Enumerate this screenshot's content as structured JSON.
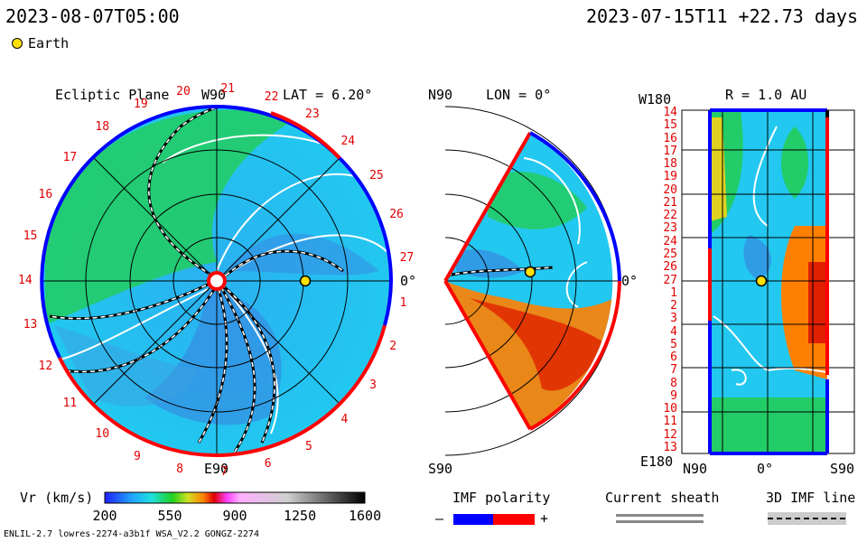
{
  "header": {
    "time_current": "2023-08-07T05:00",
    "time_run": "2023-07-15T11 +22.73 days",
    "legend_earth": "Earth"
  },
  "panels": {
    "ecliptic": {
      "title": "Ecliptic Plane",
      "w90": "W90",
      "lat": "LAT = 6.20°",
      "e90": "E90",
      "zero": "0°"
    },
    "meridional": {
      "n90": "N90",
      "lon": "LON = 0°",
      "s90": "S90",
      "zero": "0°"
    },
    "radial": {
      "w180": "W180",
      "r": "R = 1.0 AU",
      "e180": "E180",
      "n90": "N90",
      "zero": "0°",
      "s90": "S90"
    }
  },
  "carrington_labels": [
    "14",
    "15",
    "16",
    "17",
    "18",
    "19",
    "20",
    "21",
    "22",
    "23",
    "24",
    "25",
    "26",
    "27",
    "1",
    "2",
    "3",
    "4",
    "5",
    "6",
    "7",
    "8",
    "9",
    "10",
    "11",
    "12",
    "13"
  ],
  "radial_ticks": [
    "14",
    "15",
    "16",
    "17",
    "18",
    "19",
    "20",
    "21",
    "22",
    "23",
    "24",
    "25",
    "26",
    "27",
    "1",
    "2",
    "3",
    "4",
    "5",
    "6",
    "7",
    "8",
    "9",
    "10",
    "11",
    "12",
    "13"
  ],
  "colorbar": {
    "title": "Vr (km/s)",
    "ticks": [
      "200",
      "550",
      "900",
      "1250",
      "1600"
    ]
  },
  "imf_legend": {
    "title": "IMF polarity",
    "minus": "–",
    "plus": "+"
  },
  "sheath_legend": {
    "title": "Current sheath"
  },
  "imf3d_legend": {
    "title": "3D IMF line"
  },
  "footer": {
    "model": "ENLIL-2.7 lowres-2274-a3b1f WSA_V2.2 GONGZ-2274"
  },
  "colors": {
    "positive": "#ff0000",
    "negative": "#0000ff",
    "earth": "#ffe000"
  },
  "chart_data": {
    "type": "heatmap",
    "quantity": "Vr (km/s)",
    "color_range": [
      200,
      1600
    ],
    "earth_position": {
      "longitude_deg": 0,
      "r_au": 1.0
    }
  }
}
